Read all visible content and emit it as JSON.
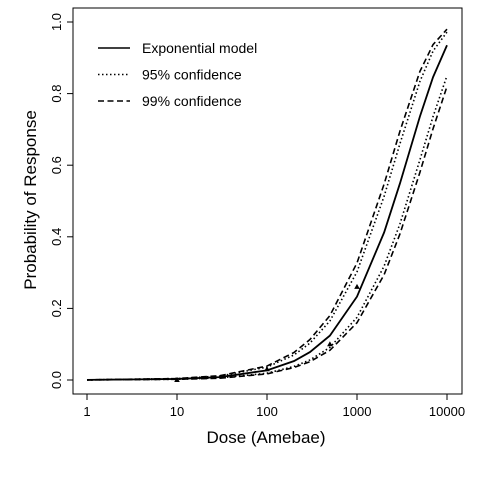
{
  "chart_data": {
    "type": "line",
    "title": "",
    "xlabel": "Dose (Amebae)",
    "ylabel": "Probability of Response",
    "x_scale": "log",
    "xlim": [
      1,
      10000
    ],
    "ylim": [
      0,
      1
    ],
    "x_ticks": [
      1,
      10,
      100,
      1000,
      10000
    ],
    "x_tick_labels": [
      "1",
      "10",
      "100",
      "1000",
      "10000"
    ],
    "y_ticks": [
      0,
      0.2,
      0.4,
      0.6,
      0.8,
      1.0
    ],
    "y_tick_labels": [
      "0.0",
      "0.2",
      "0.4",
      "0.6",
      "0.8",
      "1.0"
    ],
    "grid": false,
    "legend_position": "top-left",
    "series": [
      {
        "name": "Exponential model",
        "line_style": "solid",
        "x": [
          1,
          10,
          30,
          100,
          200,
          300,
          500,
          1000,
          2000,
          3000,
          5000,
          7000,
          10000
        ],
        "y": [
          0.0003,
          0.003,
          0.008,
          0.027,
          0.053,
          0.078,
          0.124,
          0.233,
          0.412,
          0.549,
          0.736,
          0.846,
          0.935
        ]
      },
      {
        "name": "95% confidence",
        "line_style": "dotted",
        "x": [
          1,
          10,
          30,
          100,
          200,
          300,
          500,
          1000,
          2000,
          3000,
          5000,
          7000,
          10000
        ],
        "y": [
          0.0004,
          0.004,
          0.011,
          0.036,
          0.07,
          0.103,
          0.165,
          0.302,
          0.513,
          0.66,
          0.834,
          0.919,
          0.972
        ]
      },
      {
        "name": "95% confidence",
        "line_style": "dotted",
        "x": [
          1,
          10,
          30,
          100,
          200,
          300,
          500,
          1000,
          2000,
          3000,
          5000,
          7000,
          10000
        ],
        "y": [
          0.0002,
          0.002,
          0.006,
          0.019,
          0.038,
          0.056,
          0.091,
          0.175,
          0.318,
          0.436,
          0.615,
          0.736,
          0.85
        ]
      },
      {
        "name": "99% confidence",
        "line_style": "dashed",
        "x": [
          1,
          10,
          30,
          100,
          200,
          300,
          500,
          1000,
          2000,
          3000,
          5000,
          7000,
          10000
        ],
        "y": [
          0.0004,
          0.004,
          0.012,
          0.039,
          0.077,
          0.113,
          0.18,
          0.327,
          0.547,
          0.695,
          0.862,
          0.937,
          0.98
        ]
      },
      {
        "name": "99% confidence",
        "line_style": "dashed",
        "x": [
          1,
          10,
          30,
          100,
          200,
          300,
          500,
          1000,
          2000,
          3000,
          5000,
          7000,
          10000
        ],
        "y": [
          0.0002,
          0.002,
          0.005,
          0.017,
          0.035,
          0.051,
          0.083,
          0.16,
          0.294,
          0.408,
          0.58,
          0.702,
          0.82
        ]
      }
    ],
    "observations": {
      "x": [
        10,
        100,
        500,
        1000
      ],
      "y": [
        0.0,
        0.03,
        0.1,
        0.26
      ]
    }
  }
}
